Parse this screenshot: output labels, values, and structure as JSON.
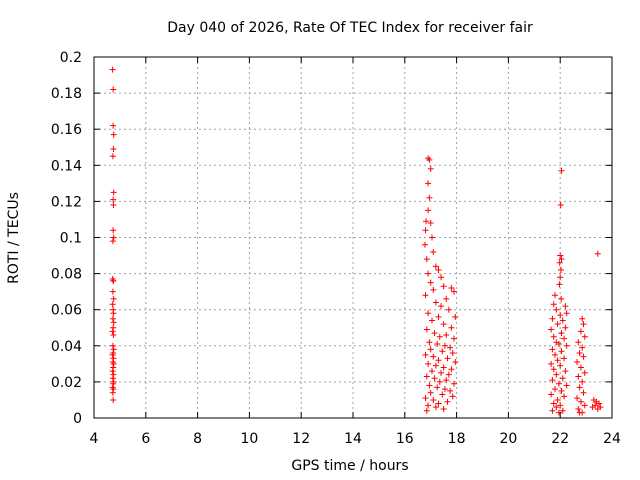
{
  "chart_data": {
    "type": "scatter",
    "title": "Day 040 of 2026, Rate Of TEC Index for receiver fair",
    "xlabel": "GPS time / hours",
    "ylabel": "ROTI / TECUs",
    "xlim": [
      4,
      24
    ],
    "ylim": [
      0,
      0.2
    ],
    "xticks": [
      "4",
      "6",
      "8",
      "10",
      "12",
      "14",
      "16",
      "18",
      "20",
      "22",
      "24"
    ],
    "yticks": [
      "0",
      "0.02",
      "0.04",
      "0.06",
      "0.08",
      "0.1",
      "0.12",
      "0.14",
      "0.16",
      "0.18",
      "0.2"
    ],
    "grid": true,
    "marker": "plus",
    "color": "#ff0000",
    "series": [
      {
        "points": [
          [
            4.72,
            0.193
          ],
          [
            4.74,
            0.182
          ],
          [
            4.74,
            0.162
          ],
          [
            4.76,
            0.157
          ],
          [
            4.75,
            0.149
          ],
          [
            4.73,
            0.145
          ],
          [
            4.76,
            0.125
          ],
          [
            4.74,
            0.121
          ],
          [
            4.75,
            0.118
          ],
          [
            4.74,
            0.104
          ],
          [
            4.76,
            0.1
          ],
          [
            4.73,
            0.098
          ],
          [
            4.72,
            0.077
          ],
          [
            4.75,
            0.076
          ],
          [
            4.74,
            0.076
          ],
          [
            4.73,
            0.07
          ],
          [
            4.76,
            0.066
          ],
          [
            4.72,
            0.063
          ],
          [
            4.74,
            0.06
          ],
          [
            4.75,
            0.058
          ],
          [
            4.73,
            0.055
          ],
          [
            4.76,
            0.053
          ],
          [
            4.74,
            0.05
          ],
          [
            4.72,
            0.048
          ],
          [
            4.75,
            0.046
          ],
          [
            4.73,
            0.04
          ],
          [
            4.76,
            0.038
          ],
          [
            4.74,
            0.036
          ],
          [
            4.72,
            0.035
          ],
          [
            4.75,
            0.033
          ],
          [
            4.73,
            0.031
          ],
          [
            4.76,
            0.03
          ],
          [
            4.74,
            0.028
          ],
          [
            4.72,
            0.026
          ],
          [
            4.75,
            0.024
          ],
          [
            4.73,
            0.022
          ],
          [
            4.76,
            0.02
          ],
          [
            4.74,
            0.019
          ],
          [
            4.72,
            0.017
          ],
          [
            4.75,
            0.016
          ],
          [
            4.73,
            0.014
          ],
          [
            4.74,
            0.01
          ],
          [
            16.9,
            0.144
          ],
          [
            16.95,
            0.143
          ],
          [
            17.0,
            0.138
          ],
          [
            16.9,
            0.13
          ],
          [
            16.95,
            0.122
          ],
          [
            16.9,
            0.115
          ],
          [
            16.82,
            0.109
          ],
          [
            17.0,
            0.108
          ],
          [
            16.8,
            0.104
          ],
          [
            17.05,
            0.1
          ],
          [
            16.78,
            0.096
          ],
          [
            17.1,
            0.092
          ],
          [
            16.85,
            0.088
          ],
          [
            17.2,
            0.084
          ],
          [
            17.3,
            0.082
          ],
          [
            16.9,
            0.08
          ],
          [
            17.4,
            0.078
          ],
          [
            17.0,
            0.075
          ],
          [
            17.5,
            0.073
          ],
          [
            17.1,
            0.071
          ],
          [
            17.8,
            0.072
          ],
          [
            17.9,
            0.07
          ],
          [
            16.8,
            0.068
          ],
          [
            17.6,
            0.066
          ],
          [
            17.2,
            0.064
          ],
          [
            17.4,
            0.062
          ],
          [
            17.7,
            0.06
          ],
          [
            16.9,
            0.058
          ],
          [
            17.3,
            0.056
          ],
          [
            17.95,
            0.056
          ],
          [
            17.05,
            0.054
          ],
          [
            17.5,
            0.052
          ],
          [
            17.8,
            0.05
          ],
          [
            16.85,
            0.049
          ],
          [
            17.15,
            0.047
          ],
          [
            17.6,
            0.046
          ],
          [
            17.35,
            0.045
          ],
          [
            17.9,
            0.044
          ],
          [
            16.95,
            0.042
          ],
          [
            17.25,
            0.041
          ],
          [
            17.55,
            0.04
          ],
          [
            17.75,
            0.039
          ],
          [
            17.0,
            0.038
          ],
          [
            17.45,
            0.037
          ],
          [
            17.85,
            0.036
          ],
          [
            16.8,
            0.035
          ],
          [
            17.1,
            0.034
          ],
          [
            17.65,
            0.033
          ],
          [
            17.3,
            0.032
          ],
          [
            17.95,
            0.031
          ],
          [
            16.9,
            0.03
          ],
          [
            17.2,
            0.029
          ],
          [
            17.5,
            0.028
          ],
          [
            17.8,
            0.027
          ],
          [
            17.05,
            0.026
          ],
          [
            17.4,
            0.025
          ],
          [
            17.7,
            0.024
          ],
          [
            16.85,
            0.023
          ],
          [
            17.15,
            0.022
          ],
          [
            17.6,
            0.021
          ],
          [
            17.35,
            0.02
          ],
          [
            17.9,
            0.019
          ],
          [
            16.95,
            0.018
          ],
          [
            17.25,
            0.017
          ],
          [
            17.55,
            0.016
          ],
          [
            17.75,
            0.015
          ],
          [
            17.0,
            0.014
          ],
          [
            17.45,
            0.013
          ],
          [
            17.85,
            0.012
          ],
          [
            16.8,
            0.011
          ],
          [
            17.1,
            0.01
          ],
          [
            17.65,
            0.009
          ],
          [
            17.3,
            0.008
          ],
          [
            16.9,
            0.007
          ],
          [
            17.2,
            0.006
          ],
          [
            17.5,
            0.005
          ],
          [
            16.85,
            0.004
          ],
          [
            22.05,
            0.137
          ],
          [
            22.02,
            0.118
          ],
          [
            22.0,
            0.09
          ],
          [
            22.05,
            0.088
          ],
          [
            21.98,
            0.086
          ],
          [
            22.03,
            0.082
          ],
          [
            22.0,
            0.078
          ],
          [
            21.97,
            0.074
          ],
          [
            21.8,
            0.068
          ],
          [
            22.04,
            0.066
          ],
          [
            21.75,
            0.063
          ],
          [
            22.2,
            0.062
          ],
          [
            21.85,
            0.06
          ],
          [
            22.25,
            0.058
          ],
          [
            22.0,
            0.057
          ],
          [
            21.7,
            0.055
          ],
          [
            22.1,
            0.054
          ],
          [
            21.9,
            0.052
          ],
          [
            22.85,
            0.055
          ],
          [
            22.9,
            0.052
          ],
          [
            22.2,
            0.05
          ],
          [
            21.65,
            0.049
          ],
          [
            22.8,
            0.048
          ],
          [
            22.05,
            0.047
          ],
          [
            21.75,
            0.045
          ],
          [
            22.95,
            0.045
          ],
          [
            22.15,
            0.044
          ],
          [
            21.85,
            0.042
          ],
          [
            22.7,
            0.042
          ],
          [
            21.95,
            0.041
          ],
          [
            22.25,
            0.04
          ],
          [
            22.85,
            0.039
          ],
          [
            21.7,
            0.038
          ],
          [
            22.05,
            0.037
          ],
          [
            22.75,
            0.036
          ],
          [
            21.8,
            0.035
          ],
          [
            22.9,
            0.034
          ],
          [
            22.15,
            0.033
          ],
          [
            21.9,
            0.032
          ],
          [
            22.65,
            0.031
          ],
          [
            21.65,
            0.03
          ],
          [
            22.0,
            0.029
          ],
          [
            22.8,
            0.028
          ],
          [
            21.75,
            0.027
          ],
          [
            22.2,
            0.026
          ],
          [
            22.95,
            0.025
          ],
          [
            21.85,
            0.024
          ],
          [
            22.7,
            0.023
          ],
          [
            22.1,
            0.022
          ],
          [
            21.7,
            0.021
          ],
          [
            22.85,
            0.02
          ],
          [
            21.95,
            0.019
          ],
          [
            22.25,
            0.018
          ],
          [
            22.75,
            0.017
          ],
          [
            21.8,
            0.016
          ],
          [
            22.05,
            0.015
          ],
          [
            22.9,
            0.014
          ],
          [
            21.65,
            0.013
          ],
          [
            22.15,
            0.012
          ],
          [
            22.65,
            0.011
          ],
          [
            21.9,
            0.01
          ],
          [
            22.8,
            0.009
          ],
          [
            21.75,
            0.008
          ],
          [
            22.0,
            0.007
          ],
          [
            22.95,
            0.007
          ],
          [
            21.85,
            0.006
          ],
          [
            22.7,
            0.005
          ],
          [
            21.7,
            0.004
          ],
          [
            22.1,
            0.004
          ],
          [
            22.85,
            0.003
          ],
          [
            21.95,
            0.003
          ],
          [
            22.75,
            0.003
          ],
          [
            23.45,
            0.091
          ],
          [
            23.3,
            0.01
          ],
          [
            23.4,
            0.009
          ],
          [
            23.5,
            0.008
          ],
          [
            23.35,
            0.007
          ],
          [
            23.55,
            0.006
          ],
          [
            23.25,
            0.006
          ],
          [
            23.45,
            0.005
          ]
        ]
      }
    ]
  }
}
